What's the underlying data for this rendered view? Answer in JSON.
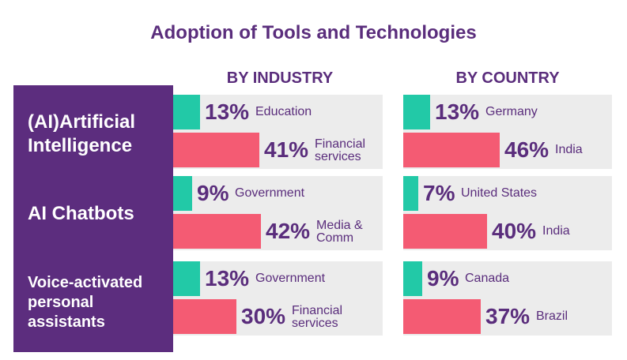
{
  "title": "Adoption of Tools and Technologies",
  "column_headers": [
    "BY INDUSTRY",
    "BY COUNTRY"
  ],
  "colors": {
    "purple": "#5c2d7e",
    "teal": "#22c9a7",
    "pink": "#f45b73",
    "panel": "#ececec",
    "text": "#5a2d7c"
  },
  "chart_data": {
    "type": "bar",
    "title": "Adoption of Tools and Technologies",
    "groups": [
      {
        "label": "(AI)Artificial Intelligence",
        "by_industry": [
          {
            "value": 13,
            "pct_label": "13%",
            "category": [
              "Education"
            ]
          },
          {
            "value": 41,
            "pct_label": "41%",
            "category": [
              "Financial",
              "services"
            ]
          }
        ],
        "by_country": [
          {
            "value": 13,
            "pct_label": "13%",
            "category": [
              "Germany"
            ]
          },
          {
            "value": 46,
            "pct_label": "46%",
            "category": [
              "India"
            ]
          }
        ]
      },
      {
        "label": "AI Chatbots",
        "by_industry": [
          {
            "value": 9,
            "pct_label": "9%",
            "category": [
              "Government"
            ]
          },
          {
            "value": 42,
            "pct_label": "42%",
            "category": [
              "Media &",
              "Comm"
            ]
          }
        ],
        "by_country": [
          {
            "value": 7,
            "pct_label": "7%",
            "category": [
              "United States"
            ]
          },
          {
            "value": 40,
            "pct_label": "40%",
            "category": [
              "India"
            ]
          }
        ]
      },
      {
        "label": "Voice-activated personal assistants",
        "by_industry": [
          {
            "value": 13,
            "pct_label": "13%",
            "category": [
              "Government"
            ]
          },
          {
            "value": 30,
            "pct_label": "30%",
            "category": [
              "Financial",
              "services"
            ]
          }
        ],
        "by_country": [
          {
            "value": 9,
            "pct_label": "9%",
            "category": [
              "Canada"
            ]
          },
          {
            "value": 37,
            "pct_label": "37%",
            "category": [
              "Brazil"
            ]
          }
        ]
      }
    ]
  }
}
